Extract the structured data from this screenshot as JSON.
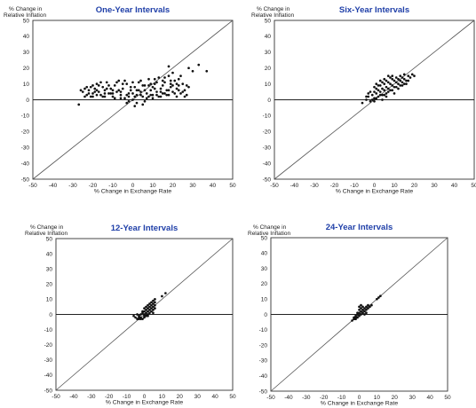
{
  "chart_data": [
    {
      "type": "scatter",
      "title": "One-Year Intervals",
      "ylabel_line1": "% Change in",
      "ylabel_line2": "Relative Inflation",
      "xlabel": "% Change in Exchange Rate",
      "xlim": [
        -50,
        50
      ],
      "ylim": [
        -50,
        50
      ],
      "xticks": [
        -50,
        -40,
        -30,
        -20,
        -10,
        0,
        10,
        20,
        30,
        40,
        50
      ],
      "yticks": [
        50,
        40,
        30,
        20,
        10,
        0,
        -10,
        -20,
        -30,
        -40,
        -50
      ],
      "reference_line": "45-degree",
      "points": [
        [
          -25,
          5
        ],
        [
          -24,
          7
        ],
        [
          -23,
          3
        ],
        [
          -22,
          6
        ],
        [
          -21,
          8
        ],
        [
          -20,
          4
        ],
        [
          -19,
          7
        ],
        [
          -18,
          10
        ],
        [
          -17,
          5
        ],
        [
          -16,
          3
        ],
        [
          -15,
          8
        ],
        [
          -14,
          6
        ],
        [
          -13,
          11
        ],
        [
          -12,
          4
        ],
        [
          -11,
          7
        ],
        [
          -10,
          2
        ],
        [
          -9,
          9
        ],
        [
          -8,
          5
        ],
        [
          -7,
          12
        ],
        [
          -6,
          3
        ],
        [
          -5,
          7
        ],
        [
          -4,
          1
        ],
        [
          -3,
          10
        ],
        [
          -2,
          4
        ],
        [
          -1,
          6
        ],
        [
          0,
          0
        ],
        [
          1,
          8
        ],
        [
          2,
          3
        ],
        [
          3,
          11
        ],
        [
          4,
          5
        ],
        [
          5,
          2
        ],
        [
          6,
          9
        ],
        [
          7,
          4
        ],
        [
          8,
          13
        ],
        [
          9,
          6
        ],
        [
          10,
          3
        ],
        [
          11,
          10
        ],
        [
          12,
          5
        ],
        [
          13,
          14
        ],
        [
          14,
          7
        ],
        [
          15,
          4
        ],
        [
          16,
          11
        ],
        [
          17,
          6
        ],
        [
          18,
          15
        ],
        [
          19,
          8
        ],
        [
          20,
          5
        ],
        [
          21,
          12
        ],
        [
          22,
          7
        ],
        [
          23,
          9
        ],
        [
          24,
          4
        ],
        [
          25,
          10
        ],
        [
          26,
          6
        ],
        [
          27,
          3
        ],
        [
          28,
          8
        ],
        [
          -23,
          8
        ],
        [
          -21,
          2
        ],
        [
          -19,
          5
        ],
        [
          -17,
          9
        ],
        [
          -15,
          2
        ],
        [
          -13,
          7
        ],
        [
          -11,
          4
        ],
        [
          -9,
          1
        ],
        [
          -7,
          6
        ],
        [
          -5,
          10
        ],
        [
          -3,
          3
        ],
        [
          -1,
          8
        ],
        [
          1,
          2
        ],
        [
          3,
          6
        ],
        [
          5,
          9
        ],
        [
          7,
          1
        ],
        [
          9,
          3
        ],
        [
          11,
          7
        ],
        [
          13,
          2
        ],
        [
          15,
          9
        ],
        [
          17,
          3
        ],
        [
          19,
          12
        ],
        [
          21,
          4
        ],
        [
          23,
          13
        ],
        [
          25,
          5
        ],
        [
          27,
          9
        ],
        [
          -20,
          9
        ],
        [
          -16,
          11
        ],
        [
          -12,
          9
        ],
        [
          -8,
          11
        ],
        [
          -4,
          12
        ],
        [
          0,
          11
        ],
        [
          4,
          12
        ],
        [
          8,
          9
        ],
        [
          12,
          11
        ],
        [
          16,
          14
        ],
        [
          20,
          17
        ],
        [
          24,
          15
        ],
        [
          -18,
          3
        ],
        [
          -14,
          2
        ],
        [
          -10,
          6
        ],
        [
          -6,
          1
        ],
        [
          -2,
          -1
        ],
        [
          2,
          -2
        ],
        [
          6,
          -1
        ],
        [
          10,
          1
        ],
        [
          14,
          2
        ],
        [
          18,
          3
        ],
        [
          22,
          2
        ],
        [
          26,
          2
        ],
        [
          0,
          4
        ],
        [
          2,
          6
        ],
        [
          4,
          3
        ],
        [
          6,
          6
        ],
        [
          8,
          2
        ],
        [
          10,
          8
        ],
        [
          12,
          3
        ],
        [
          14,
          5
        ],
        [
          16,
          4
        ],
        [
          18,
          6
        ],
        [
          20,
          9
        ],
        [
          22,
          10
        ],
        [
          -2,
          2
        ],
        [
          -6,
          5
        ],
        [
          -10,
          4
        ],
        [
          -14,
          4
        ],
        [
          -18,
          6
        ],
        [
          -22,
          4
        ],
        [
          -26,
          6
        ],
        [
          -27,
          -3
        ],
        [
          30,
          18
        ],
        [
          33,
          22
        ],
        [
          37,
          18
        ],
        [
          18,
          21
        ],
        [
          28,
          20
        ],
        [
          -24,
          2
        ],
        [
          -20,
          2
        ],
        [
          1,
          -4
        ],
        [
          5,
          -3
        ],
        [
          -3,
          -2
        ],
        [
          9,
          10
        ],
        [
          15,
          12
        ],
        [
          19,
          10
        ],
        [
          23,
          6
        ],
        [
          11,
          13
        ]
      ]
    },
    {
      "type": "scatter",
      "title": "Six-Year Intervals",
      "ylabel_line1": "% Change in",
      "ylabel_line2": "Relative Inflation",
      "xlabel": "% Change in Exchange Rate",
      "xlim": [
        -50,
        50
      ],
      "ylim": [
        -50,
        50
      ],
      "xticks": [
        -50,
        -40,
        -30,
        -20,
        -10,
        0,
        10,
        20,
        30,
        40,
        50
      ],
      "yticks": [
        50,
        40,
        30,
        20,
        10,
        0,
        -10,
        -20,
        -30,
        -40,
        -50
      ],
      "reference_line": "45-degree",
      "points": [
        [
          -6,
          -2
        ],
        [
          -4,
          0
        ],
        [
          -3,
          2
        ],
        [
          -2,
          -1
        ],
        [
          -1,
          3
        ],
        [
          0,
          1
        ],
        [
          0,
          5
        ],
        [
          1,
          4
        ],
        [
          1,
          7
        ],
        [
          2,
          2
        ],
        [
          2,
          6
        ],
        [
          3,
          5
        ],
        [
          3,
          9
        ],
        [
          4,
          3
        ],
        [
          4,
          7
        ],
        [
          5,
          6
        ],
        [
          5,
          10
        ],
        [
          6,
          4
        ],
        [
          6,
          8
        ],
        [
          7,
          7
        ],
        [
          7,
          11
        ],
        [
          8,
          6
        ],
        [
          8,
          10
        ],
        [
          9,
          9
        ],
        [
          9,
          13
        ],
        [
          10,
          8
        ],
        [
          10,
          12
        ],
        [
          11,
          11
        ],
        [
          11,
          14
        ],
        [
          12,
          10
        ],
        [
          12,
          13
        ],
        [
          13,
          12
        ],
        [
          13,
          15
        ],
        [
          14,
          11
        ],
        [
          14,
          14
        ],
        [
          15,
          13
        ],
        [
          15,
          16
        ],
        [
          16,
          12
        ],
        [
          17,
          15
        ],
        [
          18,
          14
        ],
        [
          19,
          16
        ],
        [
          20,
          15
        ],
        [
          -3,
          4
        ],
        [
          -1,
          0
        ],
        [
          1,
          1
        ],
        [
          3,
          3
        ],
        [
          5,
          3
        ],
        [
          7,
          5
        ],
        [
          9,
          6
        ],
        [
          11,
          8
        ],
        [
          13,
          9
        ],
        [
          2,
          9
        ],
        [
          4,
          11
        ],
        [
          6,
          12
        ],
        [
          8,
          14
        ],
        [
          -2,
          5
        ],
        [
          0,
          8
        ],
        [
          4,
          0
        ],
        [
          6,
          2
        ],
        [
          10,
          4
        ],
        [
          12,
          7
        ],
        [
          14,
          9
        ],
        [
          16,
          10
        ],
        [
          0,
          -1
        ],
        [
          -4,
          2
        ],
        [
          3,
          12
        ],
        [
          5,
          13
        ],
        [
          7,
          15
        ],
        [
          9,
          15
        ],
        [
          1,
          10
        ],
        [
          17,
          12
        ],
        [
          15,
          10
        ]
      ]
    },
    {
      "type": "scatter",
      "title": "12-Year Intervals",
      "ylabel_line1": "% Change in",
      "ylabel_line2": "Relative Inflation",
      "xlabel": "% Change in Exchange Rate",
      "xlim": [
        -50,
        50
      ],
      "ylim": [
        -50,
        50
      ],
      "xticks": [
        -50,
        -40,
        -30,
        -20,
        -10,
        0,
        10,
        20,
        30,
        40,
        50
      ],
      "yticks": [
        50,
        40,
        30,
        20,
        10,
        0,
        -10,
        -20,
        -30,
        -40,
        -50
      ],
      "reference_line": "45-degree",
      "points": [
        [
          -6,
          -1
        ],
        [
          -5,
          -2
        ],
        [
          -4,
          -3
        ],
        [
          -4,
          0
        ],
        [
          -3,
          -1
        ],
        [
          -3,
          -2
        ],
        [
          -2,
          -2
        ],
        [
          -2,
          0
        ],
        [
          -1,
          -3
        ],
        [
          -1,
          1
        ],
        [
          0,
          -1
        ],
        [
          0,
          2
        ],
        [
          0,
          0
        ],
        [
          1,
          1
        ],
        [
          1,
          3
        ],
        [
          1,
          -1
        ],
        [
          2,
          2
        ],
        [
          2,
          4
        ],
        [
          2,
          0
        ],
        [
          3,
          3
        ],
        [
          3,
          5
        ],
        [
          3,
          1
        ],
        [
          4,
          4
        ],
        [
          4,
          6
        ],
        [
          4,
          2
        ],
        [
          5,
          5
        ],
        [
          5,
          7
        ],
        [
          5,
          3
        ],
        [
          6,
          6
        ],
        [
          6,
          8
        ],
        [
          5,
          9
        ],
        [
          6,
          10
        ],
        [
          10,
          12
        ],
        [
          12,
          14
        ],
        [
          -1,
          2
        ],
        [
          0,
          4
        ],
        [
          1,
          5
        ],
        [
          2,
          6
        ],
        [
          3,
          7
        ],
        [
          4,
          8
        ],
        [
          -2,
          -3
        ],
        [
          -3,
          -3
        ],
        [
          0,
          -2
        ],
        [
          2,
          -1
        ],
        [
          6,
          4
        ],
        [
          5,
          1
        ]
      ]
    },
    {
      "type": "scatter",
      "title": "24-Year Intervals",
      "ylabel_line1": "% Change in",
      "ylabel_line2": "Relative Inflation",
      "xlabel": "% Change in Exchange Rate",
      "xlim": [
        -50,
        50
      ],
      "ylim": [
        -50,
        50
      ],
      "xticks": [
        -50,
        -40,
        -30,
        -20,
        -10,
        0,
        10,
        20,
        30,
        40,
        50
      ],
      "yticks": [
        50,
        40,
        30,
        20,
        10,
        0,
        -10,
        -20,
        -30,
        -40,
        -50
      ],
      "reference_line": "45-degree",
      "points": [
        [
          -4,
          -4
        ],
        [
          -3,
          -2
        ],
        [
          -3,
          -3
        ],
        [
          -2,
          -1
        ],
        [
          -2,
          -3
        ],
        [
          -1,
          -2
        ],
        [
          -1,
          0
        ],
        [
          0,
          -1
        ],
        [
          0,
          1
        ],
        [
          0,
          3
        ],
        [
          1,
          0
        ],
        [
          1,
          2
        ],
        [
          1,
          4
        ],
        [
          2,
          1
        ],
        [
          2,
          3
        ],
        [
          2,
          5
        ],
        [
          3,
          2
        ],
        [
          3,
          4
        ],
        [
          4,
          3
        ],
        [
          4,
          5
        ],
        [
          5,
          4
        ],
        [
          5,
          6
        ],
        [
          6,
          5
        ],
        [
          7,
          6
        ],
        [
          10,
          10
        ],
        [
          11,
          11
        ],
        [
          12,
          12
        ],
        [
          -1,
          1
        ],
        [
          0,
          5
        ],
        [
          1,
          6
        ],
        [
          -2,
          -2
        ],
        [
          3,
          0
        ],
        [
          4,
          1
        ]
      ]
    }
  ]
}
